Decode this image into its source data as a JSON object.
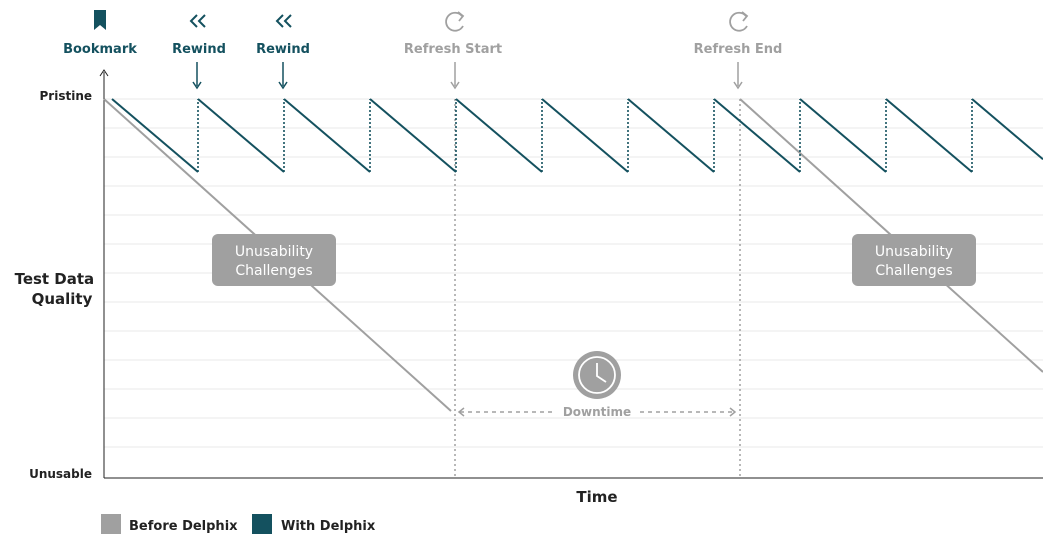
{
  "chart_data": {
    "type": "line",
    "title": "",
    "xlabel": "Time",
    "ylabel": "Test Data Quality",
    "y_ticks": {
      "top": "Pristine",
      "bottom": "Unusable"
    },
    "grid": true,
    "legend_placement": "bottom-left",
    "colors": {
      "before": "#a0a0a0",
      "with": "#14515f"
    },
    "series": [
      {
        "name": "Before Delphix",
        "color": "#a0a0a0",
        "points": [
          [
            0,
            100
          ],
          [
            402,
            17
          ]
        ],
        "points2": [
          [
            734,
            97
          ],
          [
            1043,
            29
          ]
        ]
      },
      {
        "name": "With Delphix",
        "color": "#14515f",
        "x_positions": [
          {
            "x": 10,
            "y": 100
          },
          {
            "x": 98,
            "y": 80
          },
          {
            "x": 98,
            "y": 100
          },
          {
            "x": 184,
            "y": 80
          },
          {
            "x": 184,
            "y": 100
          },
          {
            "x": 270,
            "y": 80
          },
          {
            "x": 270,
            "y": 100
          },
          {
            "x": 356,
            "y": 80
          },
          {
            "x": 356,
            "y": 100
          },
          {
            "x": 442,
            "y": 80
          },
          {
            "x": 442,
            "y": 100
          },
          {
            "x": 528,
            "y": 80
          },
          {
            "x": 528,
            "y": 100
          },
          {
            "x": 614,
            "y": 80
          },
          {
            "x": 614,
            "y": 100
          },
          {
            "x": 700,
            "y": 80
          },
          {
            "x": 700,
            "y": 100
          },
          {
            "x": 786,
            "y": 80
          },
          {
            "x": 786,
            "y": 100
          },
          {
            "x": 872,
            "y": 80
          },
          {
            "x": 872,
            "y": 100
          },
          {
            "x": 958,
            "y": 80
          },
          {
            "x": 958,
            "y": 100
          },
          {
            "x": 1043,
            "y": 80
          }
        ]
      }
    ],
    "events": [
      {
        "label": "Bookmark",
        "icon": "bookmark-icon",
        "kind": "with"
      },
      {
        "label": "Rewind",
        "icon": "rewind-icon",
        "kind": "with"
      },
      {
        "label": "Rewind",
        "icon": "rewind-icon",
        "kind": "with"
      },
      {
        "label": "Refresh Start",
        "icon": "refresh-icon",
        "kind": "before"
      },
      {
        "label": "Refresh End",
        "icon": "refresh-icon",
        "kind": "before"
      }
    ],
    "annotations": {
      "challenge_1": {
        "line1": "Unusability",
        "line2": "Challenges"
      },
      "challenge_2": {
        "line1": "Unusability",
        "line2": "Challenges"
      },
      "downtime": "Downtime"
    },
    "legend": [
      {
        "label": "Before Delphix",
        "color": "#a0a0a0"
      },
      {
        "label": "With Delphix",
        "color": "#14515f"
      }
    ]
  }
}
